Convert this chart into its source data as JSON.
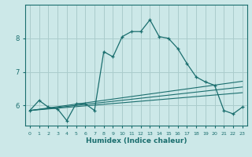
{
  "xlabel": "Humidex (Indice chaleur)",
  "ylabel": "",
  "bg_color": "#cce8e8",
  "grid_color": "#aacccc",
  "line_color": "#1a6e6e",
  "xlim": [
    -0.5,
    23.5
  ],
  "ylim": [
    5.4,
    9.0
  ],
  "yticks": [
    6,
    7,
    8
  ],
  "xticks": [
    0,
    1,
    2,
    3,
    4,
    5,
    6,
    7,
    8,
    9,
    10,
    11,
    12,
    13,
    14,
    15,
    16,
    17,
    18,
    19,
    20,
    21,
    22,
    23
  ],
  "main_line_x": [
    0,
    1,
    2,
    3,
    4,
    5,
    6,
    7,
    8,
    9,
    10,
    11,
    12,
    13,
    14,
    15,
    16,
    17,
    18,
    19,
    20,
    21,
    22,
    23
  ],
  "main_line_y": [
    5.85,
    6.15,
    5.95,
    5.9,
    5.55,
    6.05,
    6.05,
    5.85,
    7.6,
    7.45,
    8.05,
    8.2,
    8.2,
    8.55,
    8.05,
    8.0,
    7.7,
    7.25,
    6.85,
    6.7,
    6.6,
    5.85,
    5.75,
    5.95
  ],
  "line2_x": [
    0,
    23
  ],
  "line2_y": [
    5.85,
    6.55
  ],
  "line3_x": [
    0,
    23
  ],
  "line3_y": [
    5.85,
    6.72
  ],
  "line4_x": [
    0,
    23
  ],
  "line4_y": [
    5.85,
    6.38
  ]
}
